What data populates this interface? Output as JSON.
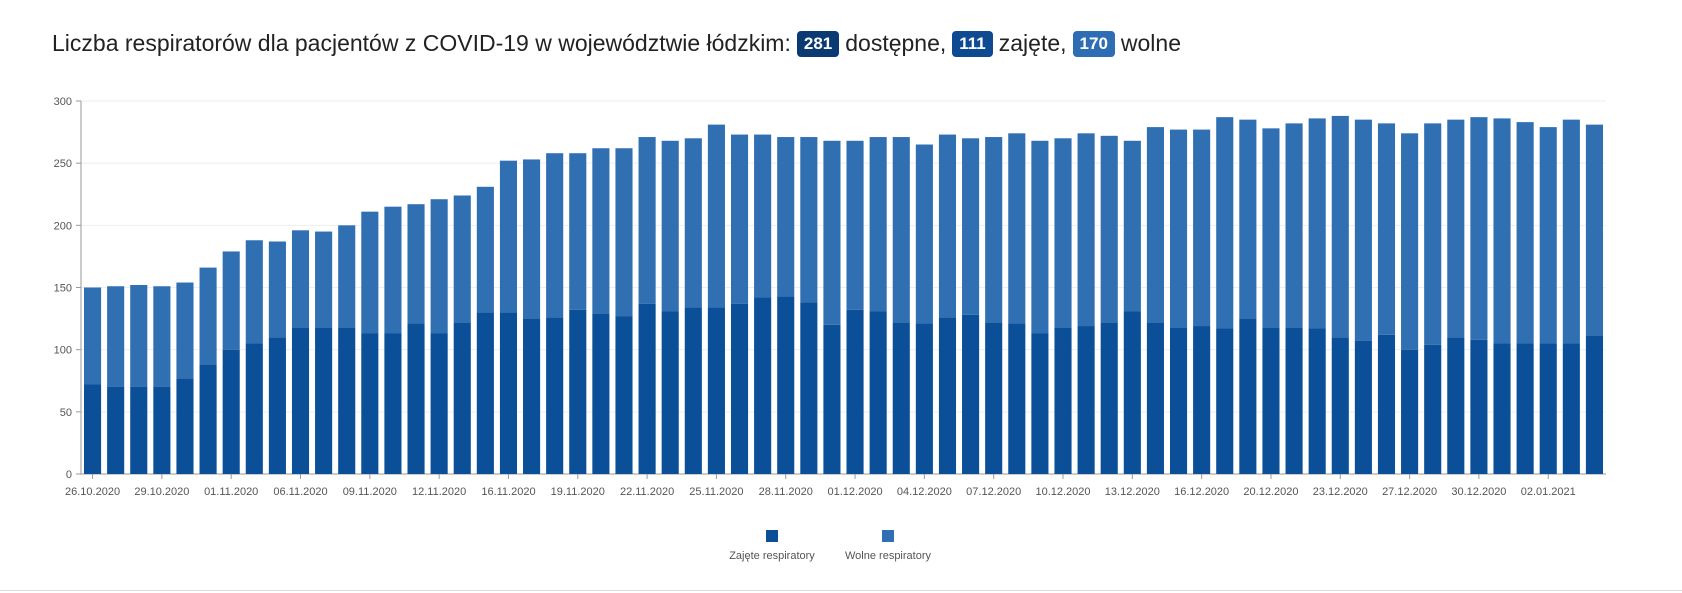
{
  "headline": {
    "prefix": "Liczba respiratorów dla pacjentów z COVID-19 w województwie łódzkim:",
    "total": "281",
    "total_label": "dostępne,",
    "occupied": "111",
    "occupied_label": "zajęte,",
    "free": "170",
    "free_label": "wolne"
  },
  "colors": {
    "occupied": "#0b4f98",
    "free": "#2f6fb2",
    "badge_total": "#0b3a73",
    "badge_occupied": "#0e4a92",
    "badge_free": "#2e6db4"
  },
  "chart_data": {
    "type": "bar",
    "stacked": true,
    "ylim": [
      0,
      300
    ],
    "yticks": [
      0,
      50,
      100,
      150,
      200,
      250,
      300
    ],
    "grid": true,
    "legend_position": "bottom-center",
    "x_tick_labels": [
      "26.10.2020",
      "29.10.2020",
      "01.11.2020",
      "06.11.2020",
      "09.11.2020",
      "12.11.2020",
      "16.11.2020",
      "19.11.2020",
      "22.11.2020",
      "25.11.2020",
      "28.11.2020",
      "01.12.2020",
      "04.12.2020",
      "07.12.2020",
      "10.12.2020",
      "13.12.2020",
      "16.12.2020",
      "20.12.2020",
      "23.12.2020",
      "27.12.2020",
      "30.12.2020",
      "02.01.2021"
    ],
    "x_tick_positions": [
      0,
      3,
      6,
      9,
      12,
      15,
      18,
      21,
      24,
      27,
      30,
      33,
      36,
      39,
      42,
      45,
      48,
      51,
      54,
      57,
      60,
      63
    ],
    "series": [
      {
        "name": "Zajęte respiratory",
        "values": [
          72,
          70,
          70,
          70,
          77,
          88,
          100,
          105,
          110,
          118,
          118,
          118,
          113,
          113,
          121,
          113,
          122,
          130,
          130,
          125,
          126,
          132,
          129,
          127,
          137,
          131,
          134,
          134,
          137,
          142,
          143,
          138,
          120,
          132,
          131,
          122,
          121,
          126,
          128,
          122,
          121,
          113,
          118,
          119,
          122,
          131,
          122,
          118,
          119,
          117,
          125,
          118,
          118,
          117,
          110,
          107,
          112,
          100,
          104,
          110,
          108,
          105,
          105,
          105,
          105,
          111
        ]
      },
      {
        "name": "Wolne respiratory",
        "values": [
          78,
          81,
          82,
          81,
          77,
          78,
          79,
          83,
          77,
          78,
          77,
          82,
          98,
          102,
          96,
          108,
          102,
          101,
          122,
          128,
          132,
          126,
          133,
          135,
          134,
          137,
          136,
          147,
          136,
          131,
          128,
          133,
          148,
          136,
          140,
          149,
          144,
          147,
          142,
          149,
          153,
          155,
          152,
          155,
          150,
          137,
          157,
          159,
          158,
          170,
          160,
          160,
          164,
          169,
          178,
          178,
          170,
          174,
          178,
          175,
          179,
          181,
          178,
          174,
          180,
          170
        ]
      }
    ]
  }
}
